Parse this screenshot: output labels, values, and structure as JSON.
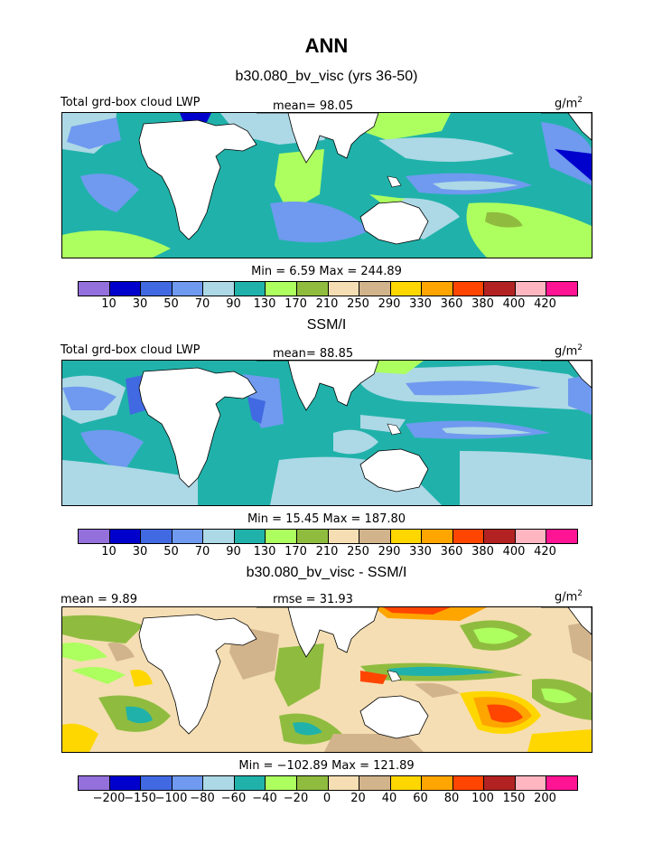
{
  "page": {
    "title": "ANN",
    "case_title": "b30.080_bv_visc (yrs 36-50)",
    "obs_title": "SSM/I",
    "diff_title": "b30.080_bv_visc - SSM/I"
  },
  "panels": [
    {
      "left_label": "Total grd-box cloud LWP",
      "stat_label": "mean=  98.05",
      "units": "g/m",
      "units_exp": "2",
      "minmax": "Min =    6.59 Max = 244.89"
    },
    {
      "left_label": "Total grd-box cloud LWP",
      "stat_label": "mean=  88.85",
      "units": "g/m",
      "units_exp": "2",
      "minmax": "Min =   15.45 Max = 187.80"
    },
    {
      "left_label": "mean =    9.89",
      "stat_label": "rmse =   31.93",
      "units": "g/m",
      "units_exp": "2",
      "minmax": "Min = −102.89 Max = 121.89"
    }
  ],
  "colorbar_abs": {
    "colors": [
      "#9370db",
      "#0000cd",
      "#4169e1",
      "#6f9aef",
      "#add8e6",
      "#20b2aa",
      "#adff5f",
      "#8fbc3f",
      "#f5deb3",
      "#d2b48c",
      "#ffd700",
      "#ffa500",
      "#ff4500",
      "#b22222",
      "#ffb6c1",
      "#ff1493"
    ],
    "ticks": [
      "10",
      "30",
      "50",
      "70",
      "90",
      "130",
      "170",
      "210",
      "250",
      "290",
      "330",
      "360",
      "380",
      "400",
      "420"
    ]
  },
  "colorbar_diff": {
    "colors": [
      "#9370db",
      "#0000cd",
      "#4169e1",
      "#6f9aef",
      "#add8e6",
      "#20b2aa",
      "#adff5f",
      "#8fbc3f",
      "#f5deb3",
      "#d2b48c",
      "#ffd700",
      "#ffa500",
      "#ff4500",
      "#b22222",
      "#ffb6c1",
      "#ff1493"
    ],
    "ticks": [
      "−200",
      "−150",
      "−100",
      "−80",
      "−60",
      "−40",
      "−20",
      "0",
      "20",
      "40",
      "60",
      "80",
      "100",
      "150",
      "200"
    ]
  }
}
